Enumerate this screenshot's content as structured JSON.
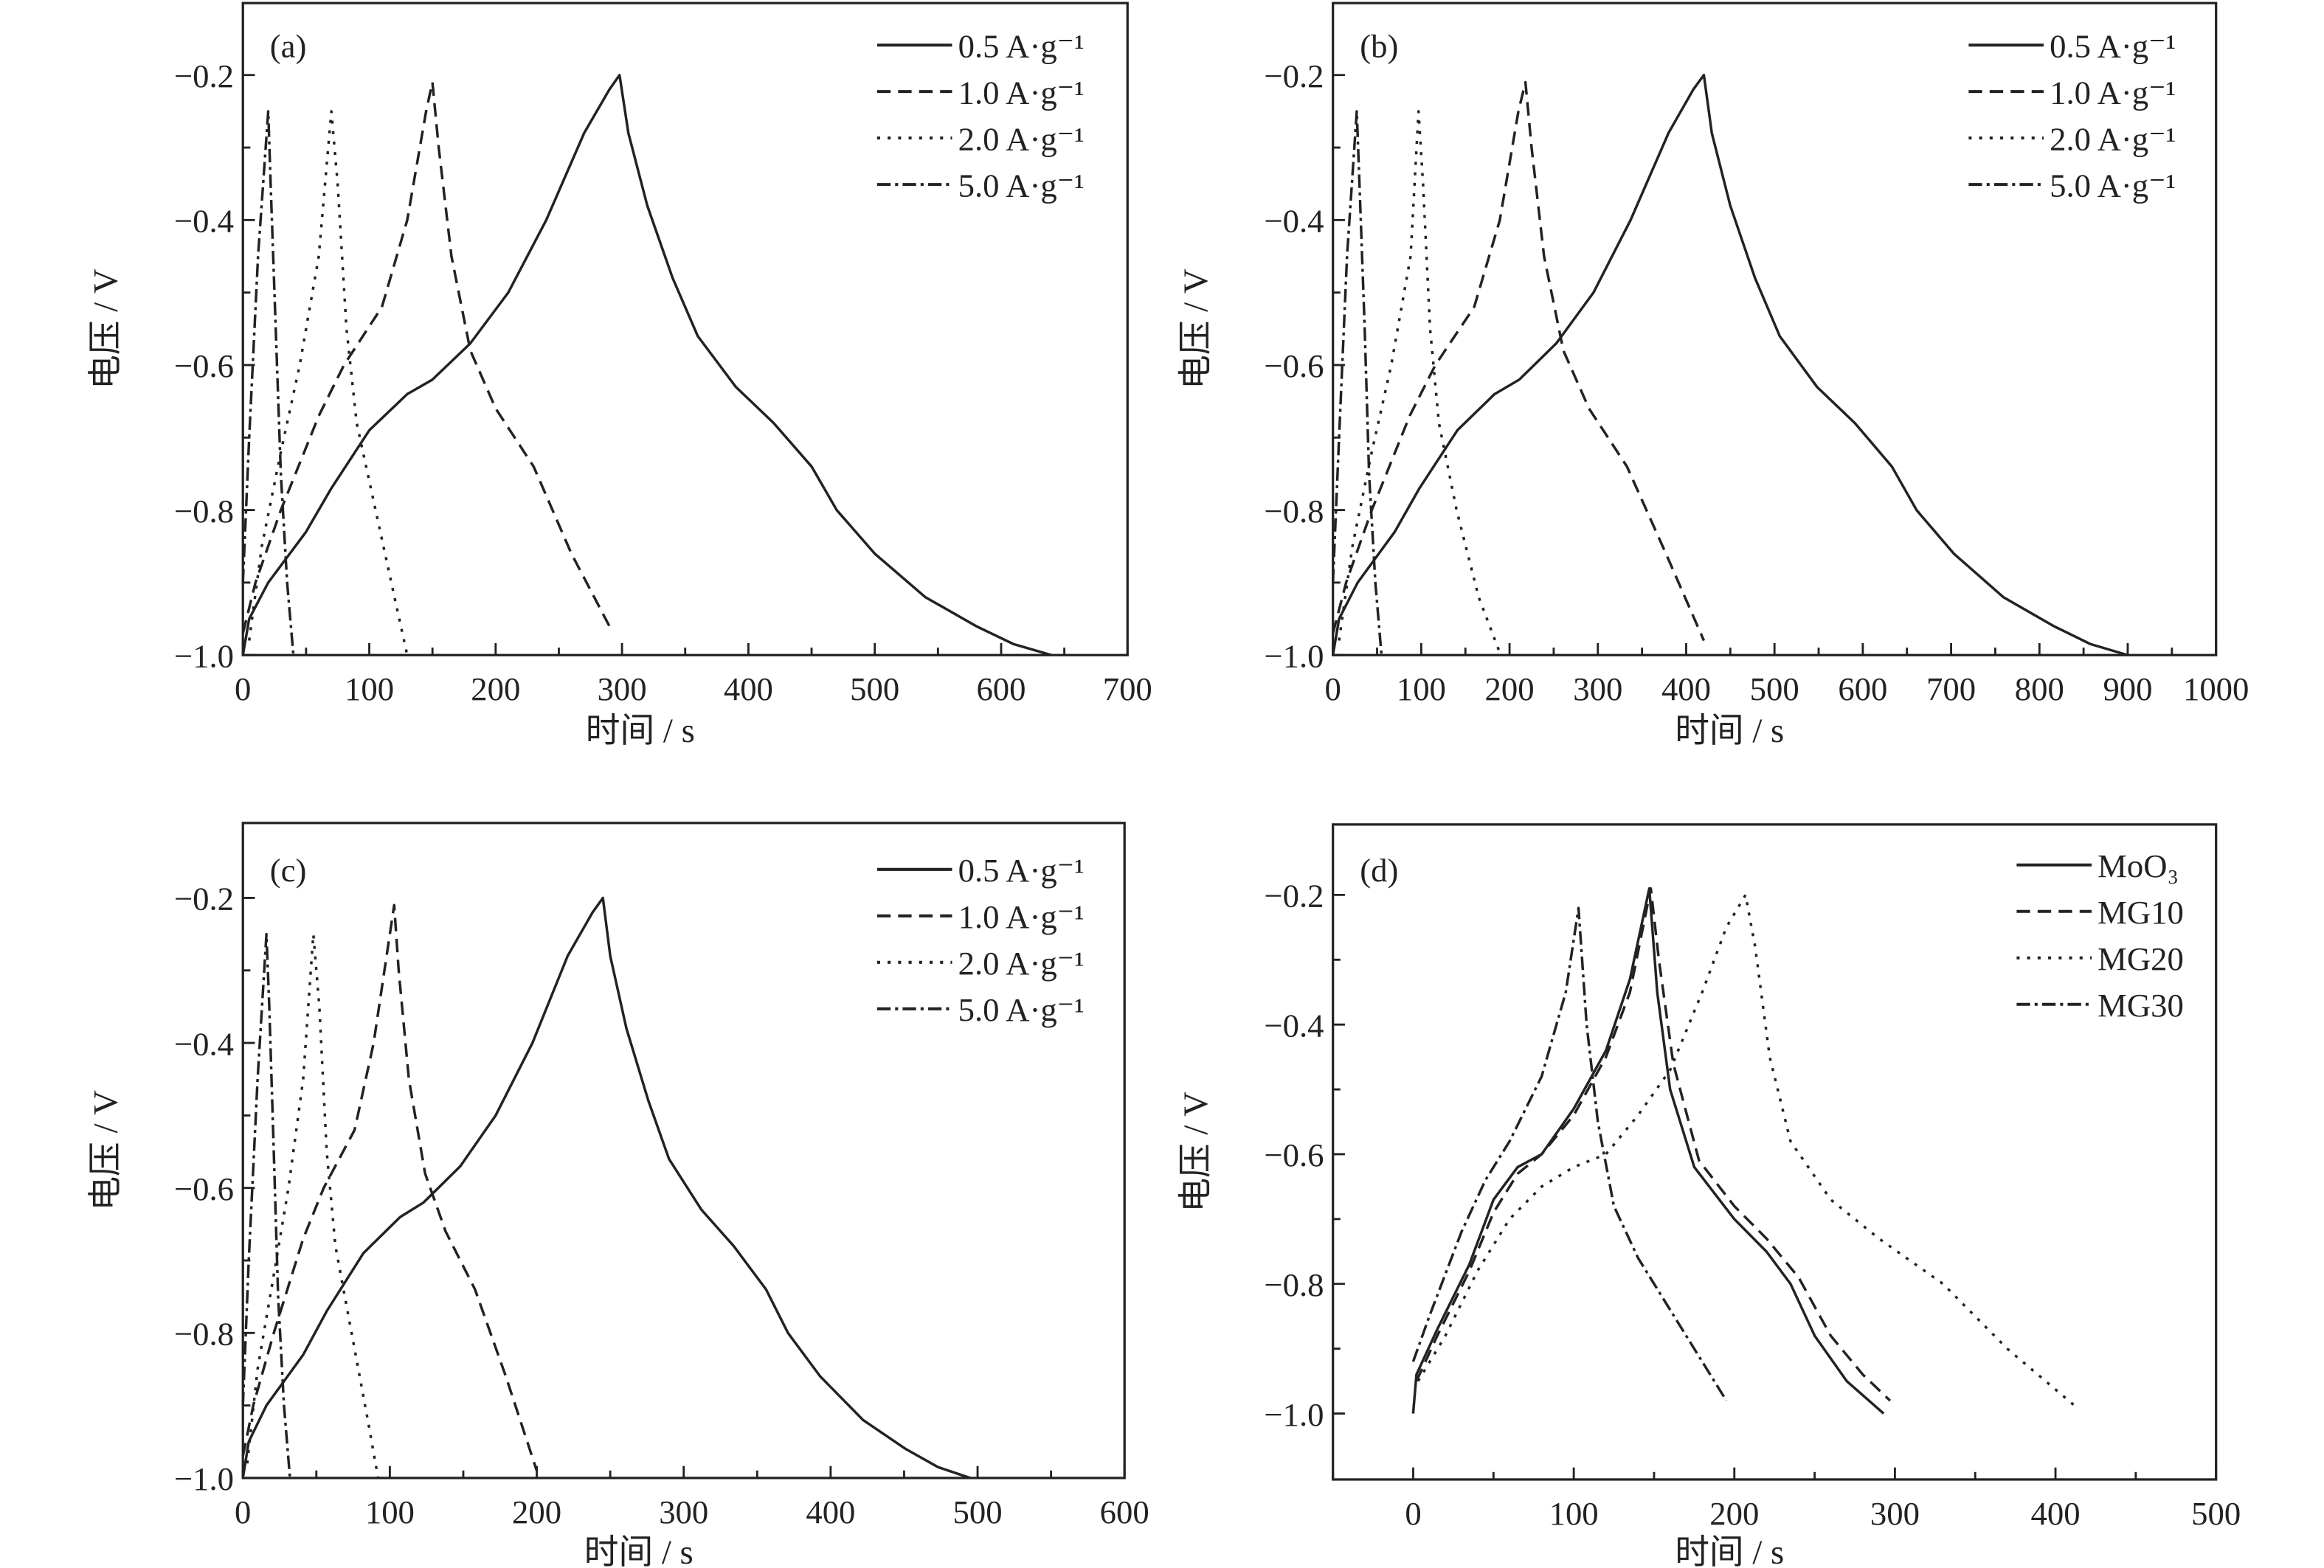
{
  "chart_data": [
    {
      "type": "line",
      "panel_label": "(a)",
      "xlabel": "时间 / s",
      "ylabel": "电压 / V",
      "xlim": [
        0,
        700
      ],
      "ylim": [
        -1.0,
        -0.1
      ],
      "xticks": [
        0,
        100,
        200,
        300,
        400,
        500,
        600,
        700
      ],
      "yticks": [
        -1.0,
        -0.8,
        -0.6,
        -0.4,
        -0.2
      ],
      "ytick_labels": [
        "−1.0",
        "−0.8",
        "−0.6",
        "−0.4",
        "−0.2"
      ],
      "legend_position": "top-right",
      "series": [
        {
          "name": "0.5 A·g⁻¹",
          "style": "solid",
          "x": [
            0,
            5,
            20,
            50,
            70,
            100,
            130,
            150,
            180,
            210,
            240,
            270,
            290,
            298,
            305,
            320,
            340,
            360,
            390,
            420,
            450,
            470,
            500,
            540,
            580,
            610,
            640
          ],
          "y": [
            -1.0,
            -0.95,
            -0.9,
            -0.83,
            -0.77,
            -0.69,
            -0.64,
            -0.62,
            -0.57,
            -0.5,
            -0.4,
            -0.28,
            -0.22,
            -0.2,
            -0.28,
            -0.38,
            -0.48,
            -0.56,
            -0.63,
            -0.68,
            -0.74,
            -0.8,
            -0.86,
            -0.92,
            -0.96,
            -0.985,
            -1.0
          ]
        },
        {
          "name": "1.0 A·g⁻¹",
          "style": "dashed",
          "x": [
            0,
            10,
            30,
            60,
            80,
            110,
            130,
            145,
            150,
            155,
            165,
            180,
            200,
            230,
            260,
            290
          ],
          "y": [
            -0.97,
            -0.9,
            -0.8,
            -0.67,
            -0.6,
            -0.52,
            -0.4,
            -0.25,
            -0.21,
            -0.3,
            -0.45,
            -0.58,
            -0.66,
            -0.74,
            -0.86,
            -0.96
          ]
        },
        {
          "name": "2.0 A·g⁻¹",
          "style": "dotted",
          "x": [
            5,
            15,
            30,
            45,
            60,
            70,
            75,
            82,
            90,
            105,
            120,
            130
          ],
          "y": [
            -0.98,
            -0.85,
            -0.72,
            -0.6,
            -0.45,
            -0.25,
            -0.35,
            -0.55,
            -0.68,
            -0.8,
            -0.92,
            -1.0
          ]
        },
        {
          "name": "5.0 A·g⁻¹",
          "style": "dashdot",
          "x": [
            0,
            5,
            12,
            20,
            22,
            26,
            30,
            35,
            40
          ],
          "y": [
            -0.9,
            -0.7,
            -0.45,
            -0.25,
            -0.35,
            -0.55,
            -0.75,
            -0.9,
            -1.0
          ]
        }
      ]
    },
    {
      "type": "line",
      "panel_label": "(b)",
      "xlabel": "时间 / s",
      "ylabel": "电压 / V",
      "xlim": [
        0,
        1000
      ],
      "ylim": [
        -1.0,
        -0.1
      ],
      "xticks": [
        0,
        100,
        200,
        300,
        400,
        500,
        600,
        700,
        800,
        900,
        1000
      ],
      "yticks": [
        -1.0,
        -0.8,
        -0.6,
        -0.4,
        -0.2
      ],
      "ytick_labels": [
        "−1.0",
        "−0.8",
        "−0.6",
        "−0.4",
        "−0.2"
      ],
      "legend_position": "top-right",
      "series": [
        {
          "name": "0.5 A·g⁻¹",
          "style": "solid",
          "x": [
            0,
            7,
            28,
            70,
            98,
            141,
            183,
            211,
            253,
            295,
            337,
            380,
            408,
            420,
            429,
            450,
            478,
            506,
            548,
            591,
            633,
            661,
            703,
            759,
            816,
            858,
            900
          ],
          "y": [
            -1.0,
            -0.95,
            -0.9,
            -0.83,
            -0.77,
            -0.69,
            -0.64,
            -0.62,
            -0.57,
            -0.5,
            -0.4,
            -0.28,
            -0.22,
            -0.2,
            -0.28,
            -0.38,
            -0.48,
            -0.56,
            -0.63,
            -0.68,
            -0.74,
            -0.8,
            -0.86,
            -0.92,
            -0.96,
            -0.985,
            -1.0
          ]
        },
        {
          "name": "1.0 A·g⁻¹",
          "style": "dashed",
          "x": [
            0,
            15,
            44,
            87,
            116,
            160,
            189,
            210,
            218,
            225,
            239,
            261,
            290,
            333,
            377,
            420
          ],
          "y": [
            -0.97,
            -0.9,
            -0.8,
            -0.67,
            -0.6,
            -0.52,
            -0.4,
            -0.25,
            -0.21,
            -0.3,
            -0.45,
            -0.58,
            -0.66,
            -0.74,
            -0.86,
            -0.98
          ]
        },
        {
          "name": "2.0 A·g⁻¹",
          "style": "dotted",
          "x": [
            7,
            22,
            44,
            66,
            88,
            97,
            102,
            110,
            120,
            140,
            165,
            190
          ],
          "y": [
            -0.98,
            -0.85,
            -0.72,
            -0.6,
            -0.45,
            -0.25,
            -0.35,
            -0.55,
            -0.68,
            -0.8,
            -0.92,
            -1.0
          ]
        },
        {
          "name": "5.0 A·g⁻¹",
          "style": "dashdot",
          "x": [
            0,
            7,
            16,
            27,
            30,
            36,
            41,
            48,
            55
          ],
          "y": [
            -0.9,
            -0.7,
            -0.45,
            -0.25,
            -0.35,
            -0.55,
            -0.75,
            -0.9,
            -1.0
          ]
        }
      ]
    },
    {
      "type": "line",
      "panel_label": "(c)",
      "xlabel": "时间 / s",
      "ylabel": "电压 / V",
      "xlim": [
        0,
        600
      ],
      "ylim": [
        -1.0,
        -0.1
      ],
      "xticks": [
        0,
        100,
        200,
        300,
        400,
        500,
        600
      ],
      "yticks": [
        -1.0,
        -0.8,
        -0.6,
        -0.4,
        -0.2
      ],
      "ytick_labels": [
        "−1.0",
        "−0.8",
        "−0.6",
        "−0.4",
        "−0.2"
      ],
      "legend_position": "top-right",
      "series": [
        {
          "name": "0.5 A·g⁻¹",
          "style": "solid",
          "x": [
            0,
            4,
            16,
            41,
            57,
            82,
            107,
            123,
            148,
            172,
            197,
            221,
            238,
            245,
            250,
            261,
            276,
            290,
            312,
            334,
            356,
            371,
            393,
            422,
            451,
            473,
            495
          ],
          "y": [
            -1.0,
            -0.95,
            -0.9,
            -0.83,
            -0.77,
            -0.69,
            -0.64,
            -0.62,
            -0.57,
            -0.5,
            -0.4,
            -0.28,
            -0.22,
            -0.2,
            -0.28,
            -0.38,
            -0.48,
            -0.56,
            -0.63,
            -0.68,
            -0.74,
            -0.8,
            -0.86,
            -0.92,
            -0.96,
            -0.985,
            -1.0
          ]
        },
        {
          "name": "1.0 A·g⁻¹",
          "style": "dashed",
          "x": [
            0,
            7,
            21,
            41,
            55,
            76,
            89,
            100,
            103,
            106,
            113,
            124,
            138,
            158,
            179,
            200
          ],
          "y": [
            -0.97,
            -0.9,
            -0.8,
            -0.67,
            -0.6,
            -0.52,
            -0.4,
            -0.25,
            -0.21,
            -0.3,
            -0.45,
            -0.58,
            -0.66,
            -0.74,
            -0.86,
            -0.99
          ]
        },
        {
          "name": "2.0 A·g⁻¹",
          "style": "dotted",
          "x": [
            3,
            10,
            21,
            31,
            41,
            48,
            52,
            57,
            63,
            74,
            85,
            92
          ],
          "y": [
            -0.98,
            -0.85,
            -0.72,
            -0.6,
            -0.45,
            -0.25,
            -0.35,
            -0.55,
            -0.68,
            -0.8,
            -0.92,
            -1.0
          ]
        },
        {
          "name": "5.0 A·g⁻¹",
          "style": "dashdot",
          "x": [
            0,
            4,
            10,
            16,
            18,
            21,
            24,
            28,
            32
          ],
          "y": [
            -0.9,
            -0.7,
            -0.45,
            -0.25,
            -0.35,
            -0.55,
            -0.75,
            -0.9,
            -1.0
          ]
        }
      ]
    },
    {
      "type": "line",
      "panel_label": "(d)",
      "xlabel": "时间 / s",
      "ylabel": "电压 / V",
      "xlim": [
        -50,
        500
      ],
      "ylim": [
        -1.1,
        -0.1
      ],
      "xticks": [
        0,
        100,
        200,
        300,
        400,
        500
      ],
      "yticks": [
        -1.0,
        -0.8,
        -0.6,
        -0.4,
        -0.2
      ],
      "ytick_labels": [
        "−1.0",
        "−0.8",
        "−0.6",
        "−0.4",
        "−0.2"
      ],
      "legend_position": "top-right",
      "series": [
        {
          "name": "MoO₃",
          "style": "solid",
          "x": [
            0,
            2,
            15,
            35,
            50,
            65,
            80,
            100,
            120,
            135,
            147,
            152,
            160,
            175,
            200,
            220,
            235,
            250,
            270,
            293
          ],
          "y": [
            -1.0,
            -0.94,
            -0.87,
            -0.77,
            -0.67,
            -0.62,
            -0.6,
            -0.53,
            -0.44,
            -0.33,
            -0.19,
            -0.35,
            -0.5,
            -0.62,
            -0.7,
            -0.75,
            -0.8,
            -0.88,
            -0.95,
            -1.0
          ]
        },
        {
          "name": "MG10",
          "style": "dashed",
          "x": [
            2,
            15,
            35,
            50,
            65,
            80,
            100,
            120,
            135,
            148,
            153,
            162,
            178,
            200,
            220,
            240,
            260,
            280,
            297
          ],
          "y": [
            -0.95,
            -0.88,
            -0.78,
            -0.69,
            -0.63,
            -0.6,
            -0.54,
            -0.45,
            -0.35,
            -0.19,
            -0.3,
            -0.46,
            -0.61,
            -0.68,
            -0.73,
            -0.79,
            -0.88,
            -0.94,
            -0.98
          ]
        },
        {
          "name": "MG20",
          "style": "dotted",
          "x": [
            3,
            20,
            40,
            60,
            80,
            100,
            120,
            140,
            160,
            180,
            195,
            207,
            213,
            222,
            235,
            260,
            290,
            330,
            370,
            413
          ],
          "y": [
            -0.95,
            -0.88,
            -0.78,
            -0.7,
            -0.65,
            -0.62,
            -0.6,
            -0.54,
            -0.47,
            -0.35,
            -0.25,
            -0.2,
            -0.28,
            -0.45,
            -0.58,
            -0.67,
            -0.73,
            -0.8,
            -0.9,
            -0.99
          ]
        },
        {
          "name": "MG30",
          "style": "dashdot",
          "x": [
            0,
            10,
            30,
            45,
            60,
            80,
            95,
            103,
            108,
            115,
            125,
            140,
            160,
            180,
            195
          ],
          "y": [
            -0.92,
            -0.85,
            -0.72,
            -0.64,
            -0.58,
            -0.48,
            -0.35,
            -0.22,
            -0.4,
            -0.55,
            -0.68,
            -0.76,
            -0.84,
            -0.92,
            -0.98
          ]
        }
      ]
    }
  ]
}
